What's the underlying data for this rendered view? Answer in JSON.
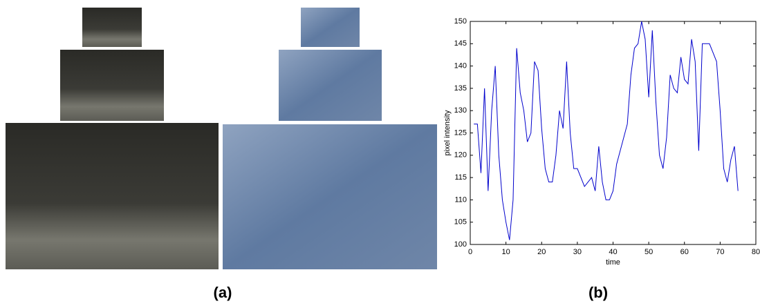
{
  "figure_labels": [
    "(a)",
    "(b)"
  ],
  "chart_data": {
    "type": "line",
    "xlabel": "time",
    "ylabel": "pixel intensity",
    "x": [
      1,
      2,
      3,
      4,
      5,
      6,
      7,
      8,
      9,
      10,
      11,
      12,
      13,
      14,
      15,
      16,
      17,
      18,
      19,
      20,
      21,
      22,
      23,
      24,
      25,
      26,
      27,
      28,
      29,
      30,
      31,
      32,
      33,
      34,
      35,
      36,
      37,
      38,
      39,
      40,
      41,
      42,
      43,
      44,
      45,
      46,
      47,
      48,
      49,
      50,
      51,
      52,
      53,
      54,
      55,
      56,
      57,
      58,
      59,
      60,
      61,
      62,
      63,
      64,
      65,
      66,
      67,
      68,
      69,
      70,
      71,
      72,
      73,
      74,
      75
    ],
    "series": [
      {
        "name": "pixel intensity",
        "color": "#0000cc",
        "values": [
          127,
          127,
          116,
          135,
          112,
          130,
          140,
          120,
          110,
          105,
          101,
          110,
          144,
          134,
          130,
          123,
          125,
          141,
          139,
          126,
          117,
          114,
          114,
          120,
          130,
          126,
          141,
          125,
          117,
          117,
          115,
          113,
          114,
          115,
          112,
          122,
          114,
          110,
          110,
          112,
          118,
          121,
          124,
          127,
          138,
          144,
          145,
          150,
          146,
          133,
          148,
          132,
          120,
          117,
          124,
          138,
          135,
          134,
          142,
          137,
          136,
          146,
          141,
          121,
          145,
          145,
          145,
          143,
          141,
          130,
          117,
          114,
          119,
          122,
          112
        ]
      }
    ],
    "xlim": [
      0,
      80
    ],
    "xticks": [
      0,
      10,
      20,
      30,
      40,
      50,
      60,
      70,
      80
    ],
    "ylim": [
      100,
      150
    ],
    "yticks": [
      100,
      105,
      110,
      115,
      120,
      125,
      130,
      135,
      140,
      145,
      150
    ]
  }
}
